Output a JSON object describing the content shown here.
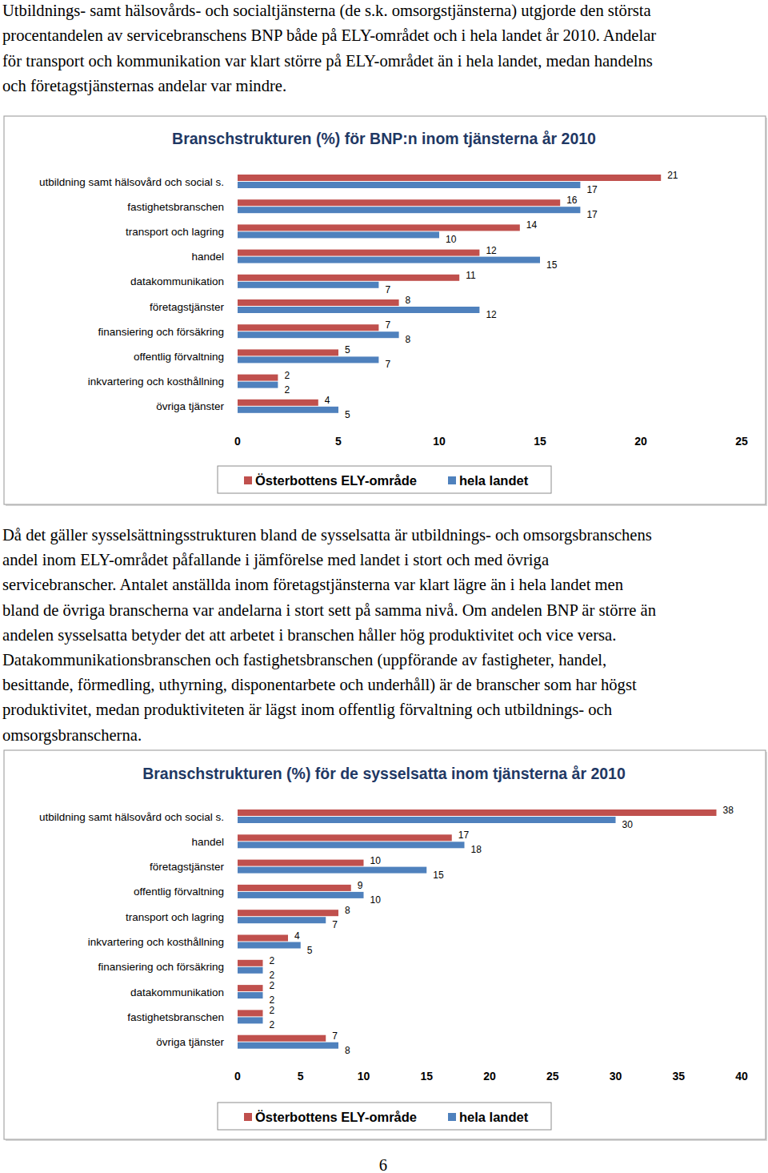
{
  "paragraphs": [
    [
      "Utbildnings- samt hälsovårds- och socialtjänsterna (de s.k. omsorgstjänsterna) utgjorde den största",
      "procentandelen av servicebranschens BNP både på ELY-området och i hela landet år 2010. Andelar",
      "för transport och kommunikation var klart större på ELY-området än i hela landet, medan handelns",
      "och företagstjänsternas andelar var mindre."
    ],
    [
      "Då det gäller sysselsättningsstrukturen bland de sysselsatta är utbildnings- och omsorgsbranschens",
      "andel inom ELY-området påfallande i jämförelse med landet i stort och med övriga",
      "servicebranscher. Antalet anställda inom företagstjänsterna var klart lägre än i hela landet men",
      "bland de övriga branscherna var andelarna i stort sett på samma nivå. Om andelen BNP är större än",
      "andelen sysselsatta betyder det att arbetet i branschen håller hög produktivitet och vice versa.",
      "Datakommunikationsbranschen och fastighetsbranschen (uppförande av fastigheter, handel,",
      "besittande, förmedling, uthyrning, disponentarbete och underhåll) är de branscher som har högst",
      "produktivitet, medan produktiviteten är lägst inom offentlig förvaltning och utbildnings- och",
      "omsorgsbranscherna."
    ]
  ],
  "chart_data": [
    {
      "type": "bar",
      "orientation": "horizontal",
      "title": "Branschstrukturen  (%) för BNP:n inom tjänsterna år 2010",
      "categories": [
        "utbildning samt hälsovård och social s.",
        "fastighetsbranschen",
        "transport och lagring",
        "handel",
        "datakommunikation",
        "företagstjänster",
        "finansiering och försäkring",
        "offentlig förvaltning",
        "inkvartering och kosthållning",
        "övriga tjänster"
      ],
      "series": [
        {
          "name": "Österbottens ELY-område",
          "color": "#c0504d",
          "values": [
            21,
            16,
            14,
            12,
            11,
            8,
            7,
            5,
            2,
            4
          ]
        },
        {
          "name": "hela landet",
          "color": "#4f81bd",
          "values": [
            17,
            17,
            10,
            15,
            7,
            12,
            8,
            7,
            2,
            5
          ]
        }
      ],
      "xlim": [
        0,
        25
      ],
      "xticks": [
        0,
        5,
        10,
        15,
        20,
        25
      ],
      "data_labels": true,
      "legend": "bottom",
      "grid": false
    },
    {
      "type": "bar",
      "orientation": "horizontal",
      "title": "Branschstrukturen (%) för  de sysselsatta inom tjänsterna år 2010",
      "categories": [
        "utbildning samt hälsovård och social s.",
        "handel",
        "företagstjänster",
        "offentlig förvaltning",
        "transport och lagring",
        "inkvartering och kosthållning",
        "finansiering och försäkring",
        "datakommunikation",
        "fastighetsbranschen",
        "övriga tjänster"
      ],
      "series": [
        {
          "name": "Österbottens ELY-område",
          "color": "#c0504d",
          "values": [
            38,
            17,
            10,
            9,
            8,
            4,
            2,
            2,
            2,
            7
          ]
        },
        {
          "name": "hela landet",
          "color": "#4f81bd",
          "values": [
            30,
            18,
            15,
            10,
            7,
            5,
            2,
            2,
            2,
            8
          ]
        }
      ],
      "xlim": [
        0,
        40
      ],
      "xticks": [
        0,
        5,
        10,
        15,
        20,
        25,
        30,
        35,
        40
      ],
      "data_labels": true,
      "legend": "bottom",
      "grid": false
    }
  ],
  "page_number": 6
}
